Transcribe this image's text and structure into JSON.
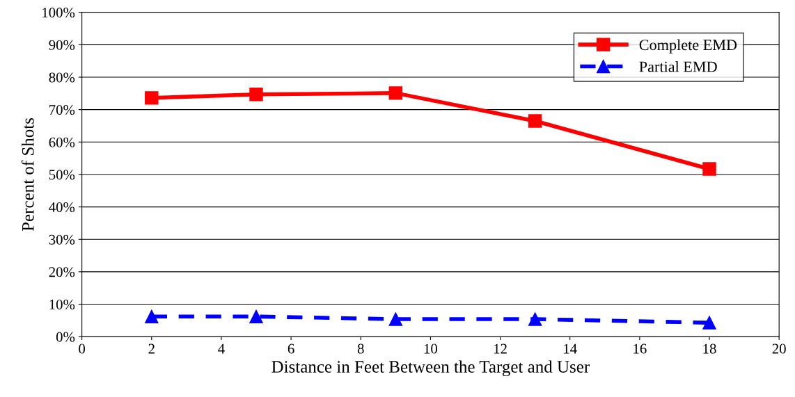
{
  "chart_data": {
    "type": "line",
    "xlabel": "Distance in Feet Between the Target and User",
    "ylabel": "Percent of Shots",
    "x": [
      2,
      5,
      9,
      13,
      18
    ],
    "series": [
      {
        "name": "Complete EMD",
        "color": "#ff0000",
        "values": [
          73.6,
          74.7,
          75.1,
          66.5,
          51.7
        ],
        "marker": "square",
        "line_style": "solid"
      },
      {
        "name": "Partial EMD",
        "color": "#0000ff",
        "values": [
          6.2,
          6.2,
          5.4,
          5.4,
          4.3
        ],
        "marker": "triangle",
        "line_style": "dashed"
      }
    ],
    "xlim": [
      0,
      20
    ],
    "xticks": [
      0,
      2,
      4,
      6,
      8,
      10,
      12,
      14,
      16,
      18,
      20
    ],
    "ylim": [
      0,
      100
    ],
    "yticks": [
      {
        "value": 0,
        "label": "0%"
      },
      {
        "value": 10,
        "label": "10%"
      },
      {
        "value": 20,
        "label": "20%"
      },
      {
        "value": 30,
        "label": "30%"
      },
      {
        "value": 40,
        "label": "40%"
      },
      {
        "value": 50,
        "label": "50%"
      },
      {
        "value": 60,
        "label": "60%"
      },
      {
        "value": 70,
        "label": "70%"
      },
      {
        "value": 80,
        "label": "80%"
      },
      {
        "value": 90,
        "label": "90%"
      },
      {
        "value": 100,
        "label": "100%"
      }
    ],
    "grid": "y",
    "legend": "top right"
  }
}
